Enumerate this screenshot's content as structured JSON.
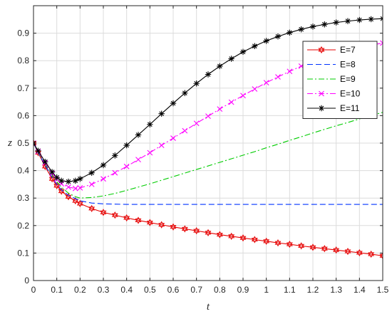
{
  "chart_data": {
    "type": "line",
    "xlabel": "t",
    "ylabel": "z",
    "xlim": [
      0,
      1.5
    ],
    "ylim": [
      0,
      1
    ],
    "grid": true,
    "legend_position": "top-right",
    "x_ticks": [
      "0",
      "0.1",
      "0.2",
      "0.3",
      "0.4",
      "0.5",
      "0.6",
      "0.7",
      "0.8",
      "0.9",
      "1",
      "1.1",
      "1.2",
      "1.3",
      "1.4",
      "1.5"
    ],
    "y_ticks": [
      "0",
      "0.1",
      "0.2",
      "0.3",
      "0.4",
      "0.5",
      "0.6",
      "0.7",
      "0.8",
      "0.9"
    ],
    "x": [
      0,
      0.02,
      0.05,
      0.08,
      0.1,
      0.12,
      0.15,
      0.18,
      0.2,
      0.25,
      0.3,
      0.35,
      0.4,
      0.45,
      0.5,
      0.55,
      0.6,
      0.65,
      0.7,
      0.75,
      0.8,
      0.85,
      0.9,
      0.95,
      1.0,
      1.05,
      1.1,
      1.15,
      1.2,
      1.25,
      1.3,
      1.35,
      1.4,
      1.45,
      1.5
    ],
    "series": [
      {
        "name": "E=7",
        "color": "#e60000",
        "dash": "solid",
        "marker": "hexagram",
        "values": [
          0.5,
          0.465,
          0.415,
          0.37,
          0.345,
          0.325,
          0.305,
          0.29,
          0.28,
          0.262,
          0.248,
          0.238,
          0.228,
          0.219,
          0.211,
          0.203,
          0.195,
          0.188,
          0.181,
          0.174,
          0.167,
          0.161,
          0.155,
          0.149,
          0.143,
          0.137,
          0.132,
          0.126,
          0.121,
          0.116,
          0.111,
          0.106,
          0.101,
          0.096,
          0.09
        ]
      },
      {
        "name": "E=8",
        "color": "#0033ff",
        "dash": "dashed",
        "marker": "none",
        "values": [
          0.5,
          0.465,
          0.42,
          0.375,
          0.35,
          0.33,
          0.31,
          0.298,
          0.29,
          0.282,
          0.279,
          0.278,
          0.277,
          0.277,
          0.277,
          0.277,
          0.277,
          0.277,
          0.277,
          0.277,
          0.277,
          0.277,
          0.277,
          0.277,
          0.277,
          0.277,
          0.277,
          0.277,
          0.277,
          0.277,
          0.277,
          0.277,
          0.277,
          0.277,
          0.277
        ]
      },
      {
        "name": "E=9",
        "color": "#00cc00",
        "dash": "dashdot",
        "marker": "none",
        "values": [
          0.5,
          0.468,
          0.425,
          0.385,
          0.36,
          0.34,
          0.318,
          0.305,
          0.3,
          0.302,
          0.308,
          0.317,
          0.328,
          0.34,
          0.352,
          0.365,
          0.378,
          0.391,
          0.404,
          0.417,
          0.43,
          0.443,
          0.456,
          0.469,
          0.483,
          0.496,
          0.51,
          0.523,
          0.537,
          0.55,
          0.563,
          0.575,
          0.588,
          0.6,
          0.612
        ]
      },
      {
        "name": "E=10",
        "color": "#ff00ff",
        "dash": "dashdot",
        "marker": "x",
        "values": [
          0.5,
          0.47,
          0.428,
          0.39,
          0.368,
          0.352,
          0.34,
          0.335,
          0.337,
          0.35,
          0.37,
          0.392,
          0.415,
          0.44,
          0.465,
          0.492,
          0.518,
          0.545,
          0.572,
          0.598,
          0.624,
          0.649,
          0.673,
          0.697,
          0.72,
          0.741,
          0.761,
          0.78,
          0.797,
          0.812,
          0.826,
          0.838,
          0.848,
          0.857,
          0.864
        ]
      },
      {
        "name": "E=11",
        "color": "#000000",
        "dash": "solid",
        "marker": "star",
        "values": [
          0.5,
          0.472,
          0.432,
          0.395,
          0.375,
          0.363,
          0.36,
          0.363,
          0.37,
          0.392,
          0.42,
          0.455,
          0.492,
          0.53,
          0.568,
          0.607,
          0.645,
          0.682,
          0.717,
          0.75,
          0.78,
          0.807,
          0.832,
          0.853,
          0.872,
          0.888,
          0.902,
          0.914,
          0.924,
          0.932,
          0.939,
          0.944,
          0.948,
          0.951,
          0.953
        ]
      }
    ]
  }
}
